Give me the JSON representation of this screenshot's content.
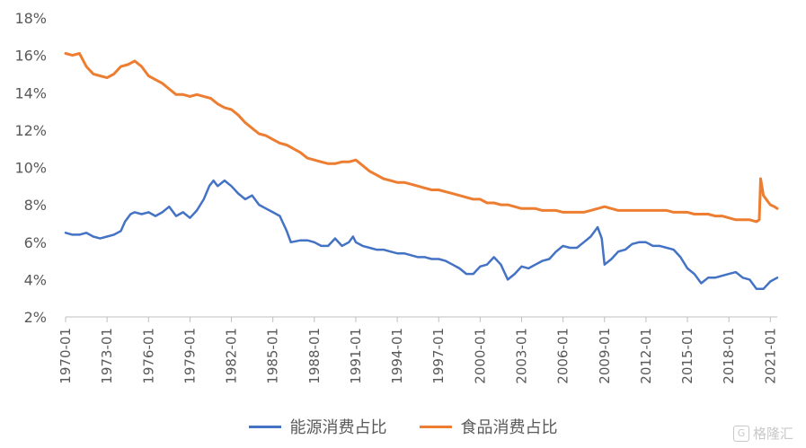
{
  "chart_data": {
    "type": "line",
    "title": "",
    "xlabel": "",
    "ylabel": "",
    "ylim": [
      0.02,
      0.18
    ],
    "yticks": [
      "2%",
      "4%",
      "6%",
      "8%",
      "10%",
      "12%",
      "14%",
      "16%",
      "18%"
    ],
    "ytick_values": [
      0.02,
      0.04,
      0.06,
      0.08,
      0.1,
      0.12,
      0.14,
      0.16,
      0.18
    ],
    "xlim": [
      1970.0,
      2021.5
    ],
    "xticks": [
      "1970-01",
      "1973-01",
      "1976-01",
      "1979-01",
      "1982-01",
      "1985-01",
      "1988-01",
      "1991-01",
      "1994-01",
      "1997-01",
      "2000-01",
      "2003-01",
      "2006-01",
      "2009-01",
      "2012-01",
      "2015-01",
      "2018-01",
      "2021-01"
    ],
    "xtick_values": [
      1970,
      1973,
      1976,
      1979,
      1982,
      1985,
      1988,
      1991,
      1994,
      1997,
      2000,
      2003,
      2006,
      2009,
      2012,
      2015,
      2018,
      2021
    ],
    "grid": false,
    "legend_position": "bottom",
    "series": [
      {
        "name": "能源消费占比",
        "color": "#4472C4",
        "points": [
          [
            1970.0,
            0.065
          ],
          [
            1970.5,
            0.064
          ],
          [
            1971.0,
            0.064
          ],
          [
            1971.5,
            0.065
          ],
          [
            1972.0,
            0.063
          ],
          [
            1972.5,
            0.062
          ],
          [
            1973.0,
            0.063
          ],
          [
            1973.5,
            0.064
          ],
          [
            1974.0,
            0.066
          ],
          [
            1974.3,
            0.071
          ],
          [
            1974.7,
            0.075
          ],
          [
            1975.0,
            0.076
          ],
          [
            1975.5,
            0.075
          ],
          [
            1976.0,
            0.076
          ],
          [
            1976.5,
            0.074
          ],
          [
            1977.0,
            0.076
          ],
          [
            1977.5,
            0.079
          ],
          [
            1978.0,
            0.074
          ],
          [
            1978.5,
            0.076
          ],
          [
            1979.0,
            0.073
          ],
          [
            1979.5,
            0.077
          ],
          [
            1980.0,
            0.083
          ],
          [
            1980.4,
            0.09
          ],
          [
            1980.7,
            0.093
          ],
          [
            1981.0,
            0.09
          ],
          [
            1981.5,
            0.093
          ],
          [
            1982.0,
            0.09
          ],
          [
            1982.5,
            0.086
          ],
          [
            1983.0,
            0.083
          ],
          [
            1983.5,
            0.085
          ],
          [
            1984.0,
            0.08
          ],
          [
            1984.5,
            0.078
          ],
          [
            1985.0,
            0.076
          ],
          [
            1985.5,
            0.074
          ],
          [
            1986.0,
            0.066
          ],
          [
            1986.3,
            0.06
          ],
          [
            1987.0,
            0.061
          ],
          [
            1987.5,
            0.061
          ],
          [
            1988.0,
            0.06
          ],
          [
            1988.5,
            0.058
          ],
          [
            1989.0,
            0.058
          ],
          [
            1989.5,
            0.062
          ],
          [
            1990.0,
            0.058
          ],
          [
            1990.5,
            0.06
          ],
          [
            1990.8,
            0.063
          ],
          [
            1991.0,
            0.06
          ],
          [
            1991.5,
            0.058
          ],
          [
            1992.0,
            0.057
          ],
          [
            1992.5,
            0.056
          ],
          [
            1993.0,
            0.056
          ],
          [
            1993.5,
            0.055
          ],
          [
            1994.0,
            0.054
          ],
          [
            1994.5,
            0.054
          ],
          [
            1995.0,
            0.053
          ],
          [
            1995.5,
            0.052
          ],
          [
            1996.0,
            0.052
          ],
          [
            1996.5,
            0.051
          ],
          [
            1997.0,
            0.051
          ],
          [
            1997.5,
            0.05
          ],
          [
            1998.0,
            0.048
          ],
          [
            1998.5,
            0.046
          ],
          [
            1999.0,
            0.043
          ],
          [
            1999.5,
            0.043
          ],
          [
            2000.0,
            0.047
          ],
          [
            2000.5,
            0.048
          ],
          [
            2001.0,
            0.052
          ],
          [
            2001.5,
            0.048
          ],
          [
            2002.0,
            0.04
          ],
          [
            2002.5,
            0.043
          ],
          [
            2003.0,
            0.047
          ],
          [
            2003.5,
            0.046
          ],
          [
            2004.0,
            0.048
          ],
          [
            2004.5,
            0.05
          ],
          [
            2005.0,
            0.051
          ],
          [
            2005.5,
            0.055
          ],
          [
            2006.0,
            0.058
          ],
          [
            2006.5,
            0.057
          ],
          [
            2007.0,
            0.057
          ],
          [
            2007.5,
            0.06
          ],
          [
            2008.0,
            0.063
          ],
          [
            2008.5,
            0.068
          ],
          [
            2008.8,
            0.062
          ],
          [
            2009.0,
            0.048
          ],
          [
            2009.5,
            0.051
          ],
          [
            2010.0,
            0.055
          ],
          [
            2010.5,
            0.056
          ],
          [
            2011.0,
            0.059
          ],
          [
            2011.5,
            0.06
          ],
          [
            2012.0,
            0.06
          ],
          [
            2012.5,
            0.058
          ],
          [
            2013.0,
            0.058
          ],
          [
            2013.5,
            0.057
          ],
          [
            2014.0,
            0.056
          ],
          [
            2014.5,
            0.052
          ],
          [
            2015.0,
            0.046
          ],
          [
            2015.5,
            0.043
          ],
          [
            2016.0,
            0.038
          ],
          [
            2016.5,
            0.041
          ],
          [
            2017.0,
            0.041
          ],
          [
            2017.5,
            0.042
          ],
          [
            2018.0,
            0.043
          ],
          [
            2018.5,
            0.044
          ],
          [
            2019.0,
            0.041
          ],
          [
            2019.5,
            0.04
          ],
          [
            2020.0,
            0.035
          ],
          [
            2020.5,
            0.035
          ],
          [
            2021.0,
            0.039
          ],
          [
            2021.5,
            0.041
          ]
        ]
      },
      {
        "name": "食品消费占比",
        "color": "#ED7D31",
        "points": [
          [
            1970.0,
            0.161
          ],
          [
            1970.5,
            0.16
          ],
          [
            1971.0,
            0.161
          ],
          [
            1971.5,
            0.154
          ],
          [
            1972.0,
            0.15
          ],
          [
            1972.5,
            0.149
          ],
          [
            1973.0,
            0.148
          ],
          [
            1973.5,
            0.15
          ],
          [
            1974.0,
            0.154
          ],
          [
            1974.5,
            0.155
          ],
          [
            1975.0,
            0.157
          ],
          [
            1975.5,
            0.154
          ],
          [
            1976.0,
            0.149
          ],
          [
            1976.5,
            0.147
          ],
          [
            1977.0,
            0.145
          ],
          [
            1977.5,
            0.142
          ],
          [
            1978.0,
            0.139
          ],
          [
            1978.5,
            0.139
          ],
          [
            1979.0,
            0.138
          ],
          [
            1979.5,
            0.139
          ],
          [
            1980.0,
            0.138
          ],
          [
            1980.5,
            0.137
          ],
          [
            1981.0,
            0.134
          ],
          [
            1981.5,
            0.132
          ],
          [
            1982.0,
            0.131
          ],
          [
            1982.5,
            0.128
          ],
          [
            1983.0,
            0.124
          ],
          [
            1983.5,
            0.121
          ],
          [
            1984.0,
            0.118
          ],
          [
            1984.5,
            0.117
          ],
          [
            1985.0,
            0.115
          ],
          [
            1985.5,
            0.113
          ],
          [
            1986.0,
            0.112
          ],
          [
            1986.5,
            0.11
          ],
          [
            1987.0,
            0.108
          ],
          [
            1987.5,
            0.105
          ],
          [
            1988.0,
            0.104
          ],
          [
            1988.5,
            0.103
          ],
          [
            1989.0,
            0.102
          ],
          [
            1989.5,
            0.102
          ],
          [
            1990.0,
            0.103
          ],
          [
            1990.5,
            0.103
          ],
          [
            1991.0,
            0.104
          ],
          [
            1991.5,
            0.101
          ],
          [
            1992.0,
            0.098
          ],
          [
            1992.5,
            0.096
          ],
          [
            1993.0,
            0.094
          ],
          [
            1993.5,
            0.093
          ],
          [
            1994.0,
            0.092
          ],
          [
            1994.5,
            0.092
          ],
          [
            1995.0,
            0.091
          ],
          [
            1995.5,
            0.09
          ],
          [
            1996.0,
            0.089
          ],
          [
            1996.5,
            0.088
          ],
          [
            1997.0,
            0.088
          ],
          [
            1997.5,
            0.087
          ],
          [
            1998.0,
            0.086
          ],
          [
            1998.5,
            0.085
          ],
          [
            1999.0,
            0.084
          ],
          [
            1999.5,
            0.083
          ],
          [
            2000.0,
            0.083
          ],
          [
            2000.5,
            0.081
          ],
          [
            2001.0,
            0.081
          ],
          [
            2001.5,
            0.08
          ],
          [
            2002.0,
            0.08
          ],
          [
            2002.5,
            0.079
          ],
          [
            2003.0,
            0.078
          ],
          [
            2003.5,
            0.078
          ],
          [
            2004.0,
            0.078
          ],
          [
            2004.5,
            0.077
          ],
          [
            2005.0,
            0.077
          ],
          [
            2005.5,
            0.077
          ],
          [
            2006.0,
            0.076
          ],
          [
            2006.5,
            0.076
          ],
          [
            2007.0,
            0.076
          ],
          [
            2007.5,
            0.076
          ],
          [
            2008.0,
            0.077
          ],
          [
            2008.5,
            0.078
          ],
          [
            2009.0,
            0.079
          ],
          [
            2009.5,
            0.078
          ],
          [
            2010.0,
            0.077
          ],
          [
            2010.5,
            0.077
          ],
          [
            2011.0,
            0.077
          ],
          [
            2011.5,
            0.077
          ],
          [
            2012.0,
            0.077
          ],
          [
            2012.5,
            0.077
          ],
          [
            2013.0,
            0.077
          ],
          [
            2013.5,
            0.077
          ],
          [
            2014.0,
            0.076
          ],
          [
            2014.5,
            0.076
          ],
          [
            2015.0,
            0.076
          ],
          [
            2015.5,
            0.075
          ],
          [
            2016.0,
            0.075
          ],
          [
            2016.5,
            0.075
          ],
          [
            2017.0,
            0.074
          ],
          [
            2017.5,
            0.074
          ],
          [
            2018.0,
            0.073
          ],
          [
            2018.5,
            0.072
          ],
          [
            2019.0,
            0.072
          ],
          [
            2019.5,
            0.072
          ],
          [
            2020.0,
            0.071
          ],
          [
            2020.2,
            0.072
          ],
          [
            2020.3,
            0.094
          ],
          [
            2020.5,
            0.085
          ],
          [
            2020.8,
            0.082
          ],
          [
            2021.0,
            0.08
          ],
          [
            2021.3,
            0.079
          ],
          [
            2021.5,
            0.078
          ]
        ]
      }
    ]
  },
  "legend": {
    "energy_label": "能源消费占比",
    "food_label": "食品消费占比"
  },
  "watermark": {
    "text": "格隆汇"
  }
}
